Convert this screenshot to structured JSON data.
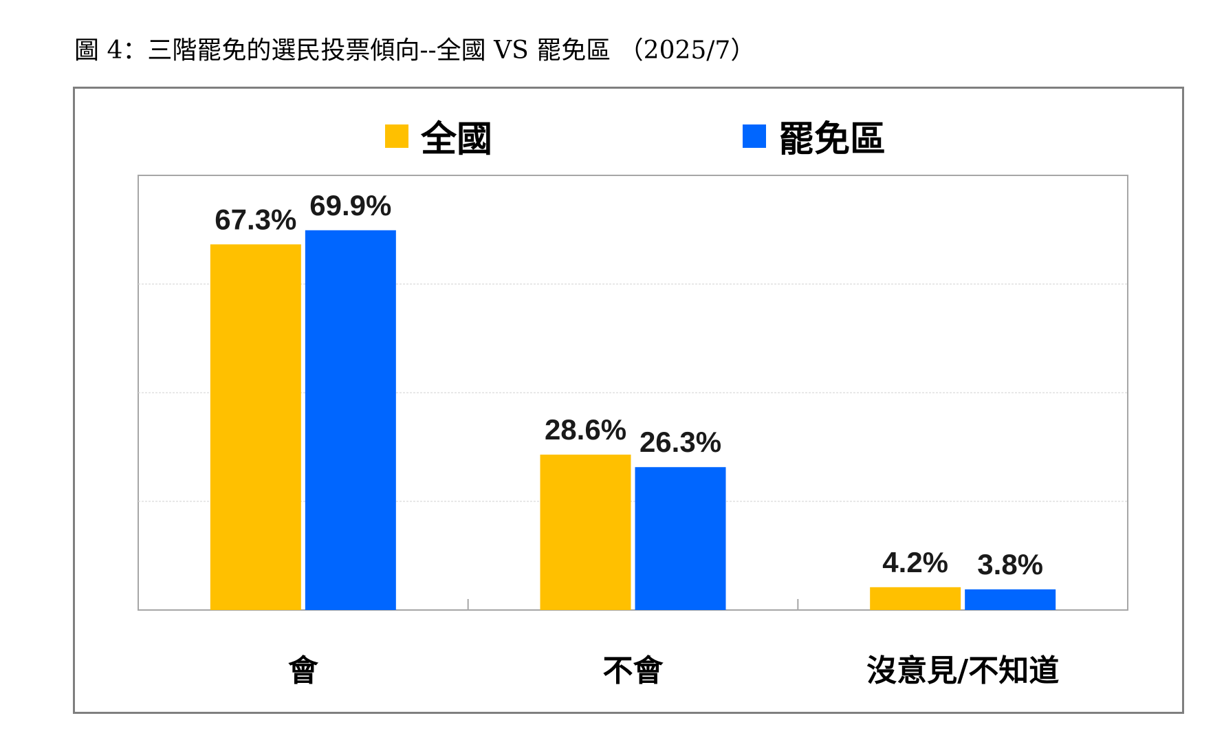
{
  "title": "圖 4：三階罷免的選民投票傾向--全國 VS 罷免區 （2025/7）",
  "chart_data": {
    "type": "bar",
    "categories": [
      "會",
      "不會",
      "沒意見/不知道"
    ],
    "series": [
      {
        "name": "全國",
        "values": [
          67.3,
          28.6,
          4.2
        ],
        "labels": [
          "67.3%",
          "28.6%",
          "4.2%"
        ],
        "color": "#FFC000"
      },
      {
        "name": "罷免區",
        "values": [
          69.9,
          26.3,
          3.8
        ],
        "labels": [
          "69.9%",
          "26.3%",
          "3.8%"
        ],
        "color": "#0066FF"
      }
    ],
    "ylim": [
      0,
      80
    ],
    "grid": true,
    "legend_position": "top"
  }
}
